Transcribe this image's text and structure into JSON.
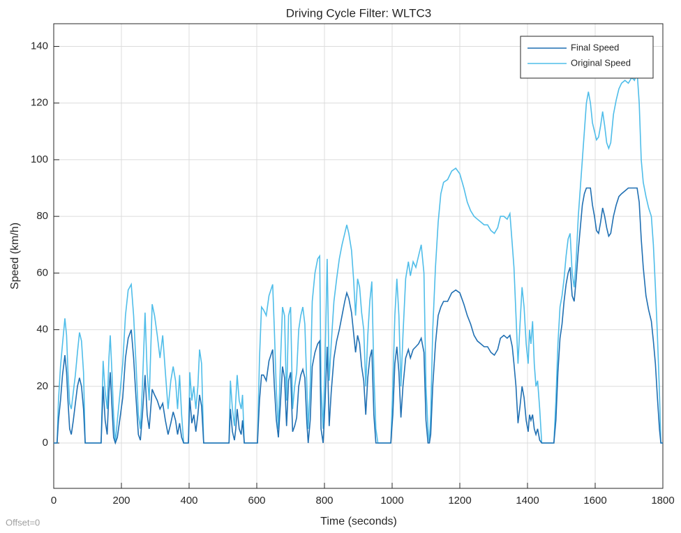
{
  "chart_data": {
    "type": "line",
    "title": "Driving Cycle Filter: WLTC3",
    "x_label": "Time (seconds)",
    "y_label": "Speed (km/h)",
    "annotation": "Offset=0",
    "xlim": [
      0,
      1800
    ],
    "xticks": [
      0,
      200,
      400,
      600,
      800,
      1000,
      1200,
      1400,
      1600,
      1800
    ],
    "ylim": [
      -16,
      148
    ],
    "yticks": [
      0,
      20,
      40,
      60,
      80,
      100,
      120,
      140
    ],
    "grid": true,
    "legend": "upper right",
    "x": [
      0,
      10,
      14,
      20,
      26,
      33,
      38,
      42,
      47,
      52,
      58,
      64,
      70,
      76,
      82,
      88,
      93,
      140,
      146,
      152,
      158,
      163,
      167,
      172,
      177,
      182,
      188,
      196,
      204,
      212,
      220,
      229,
      236,
      243,
      250,
      256,
      262,
      270,
      276,
      282,
      291,
      298,
      306,
      314,
      322,
      330,
      338,
      346,
      353,
      360,
      366,
      372,
      378,
      384,
      398,
      402,
      408,
      414,
      420,
      426,
      431,
      437,
      443,
      518,
      522,
      528,
      534,
      538,
      542,
      548,
      554,
      558,
      563,
      602,
      608,
      614,
      620,
      628,
      636,
      647,
      652,
      658,
      664,
      670,
      676,
      682,
      688,
      694,
      700,
      706,
      712,
      718,
      724,
      730,
      736,
      742,
      748,
      752,
      758,
      764,
      772,
      780,
      786,
      790,
      796,
      802,
      808,
      814,
      820,
      828,
      836,
      844,
      852,
      860,
      866,
      872,
      880,
      886,
      892,
      898,
      904,
      910,
      916,
      922,
      928,
      934,
      940,
      946,
      952,
      958,
      996,
      1002,
      1008,
      1014,
      1020,
      1026,
      1032,
      1040,
      1048,
      1054,
      1062,
      1070,
      1078,
      1086,
      1094,
      1100,
      1106,
      1110,
      1114,
      1120,
      1128,
      1136,
      1144,
      1152,
      1164,
      1176,
      1188,
      1200,
      1212,
      1222,
      1232,
      1242,
      1252,
      1262,
      1272,
      1282,
      1292,
      1302,
      1312,
      1320,
      1330,
      1340,
      1348,
      1355,
      1360,
      1366,
      1372,
      1378,
      1384,
      1390,
      1396,
      1402,
      1406,
      1410,
      1415,
      1420,
      1425,
      1430,
      1436,
      1442,
      1478,
      1484,
      1490,
      1496,
      1502,
      1508,
      1514,
      1520,
      1526,
      1532,
      1538,
      1544,
      1550,
      1556,
      1562,
      1568,
      1574,
      1580,
      1586,
      1592,
      1598,
      1604,
      1610,
      1616,
      1622,
      1628,
      1634,
      1640,
      1646,
      1654,
      1662,
      1670,
      1678,
      1688,
      1698,
      1708,
      1716,
      1724,
      1730,
      1736,
      1742,
      1750,
      1758,
      1766,
      1772,
      1778,
      1784,
      1790,
      1794,
      1800
    ],
    "series": [
      {
        "name": "Final Speed",
        "color": "#1f6fb2",
        "values": [
          0,
          0,
          8,
          15,
          24,
          31,
          25,
          15,
          5,
          3,
          8,
          14,
          20,
          23,
          20,
          12,
          0,
          0,
          20,
          8,
          3,
          18,
          25,
          13,
          2,
          0,
          2,
          9,
          16,
          30,
          37,
          40,
          30,
          16,
          3,
          1,
          10,
          24,
          10,
          5,
          19,
          17,
          15,
          12,
          14,
          8,
          3,
          7,
          11,
          8,
          3,
          7,
          2,
          0,
          0,
          16,
          7,
          10,
          4,
          10,
          17,
          13,
          0,
          0,
          12,
          4,
          1,
          5,
          12,
          5,
          3,
          8,
          0,
          0,
          15,
          24,
          24,
          22,
          29,
          33,
          20,
          8,
          2,
          14,
          27,
          23,
          6,
          22,
          25,
          4,
          6,
          9,
          20,
          24,
          26,
          23,
          7,
          0,
          8,
          27,
          32,
          35,
          36,
          5,
          0,
          15,
          34,
          6,
          18,
          30,
          36,
          40,
          45,
          50,
          53,
          51,
          46,
          39,
          32,
          38,
          35,
          27,
          22,
          10,
          23,
          30,
          33,
          10,
          0,
          0,
          0,
          10,
          28,
          34,
          25,
          9,
          20,
          30,
          33,
          30,
          33,
          34,
          35,
          37,
          32,
          8,
          0,
          0,
          3,
          20,
          35,
          45,
          48,
          50,
          50,
          53,
          54,
          53,
          49,
          45,
          42,
          38,
          36,
          35,
          34,
          34,
          32,
          31,
          33,
          37,
          38,
          37,
          38,
          34,
          28,
          20,
          7,
          13,
          20,
          16,
          8,
          4,
          10,
          8,
          10,
          5,
          3,
          5,
          1,
          0,
          0,
          8,
          25,
          37,
          42,
          50,
          56,
          60,
          62,
          52,
          50,
          58,
          68,
          76,
          84,
          88,
          90,
          90,
          90,
          84,
          80,
          75,
          74,
          78,
          83,
          80,
          76,
          73,
          74,
          80,
          84,
          87,
          88,
          89,
          90,
          90,
          90,
          90,
          85,
          72,
          62,
          52,
          47,
          43,
          36,
          28,
          16,
          5,
          0,
          0
        ]
      },
      {
        "name": "Original Speed",
        "color": "#4fbde9",
        "values": [
          0,
          0,
          15,
          27,
          35,
          44,
          38,
          25,
          14,
          12,
          18,
          24,
          32,
          39,
          36,
          25,
          0,
          0,
          29,
          18,
          12,
          30,
          38,
          25,
          10,
          0,
          8,
          18,
          28,
          45,
          54,
          56,
          45,
          28,
          10,
          5,
          20,
          46,
          25,
          15,
          49,
          45,
          38,
          30,
          38,
          25,
          12,
          22,
          27,
          22,
          12,
          24,
          10,
          0,
          0,
          25,
          15,
          20,
          12,
          20,
          33,
          28,
          0,
          0,
          22,
          12,
          6,
          15,
          24,
          15,
          12,
          17,
          0,
          0,
          30,
          48,
          47,
          45,
          52,
          56,
          40,
          18,
          5,
          28,
          48,
          45,
          15,
          45,
          48,
          12,
          20,
          25,
          40,
          45,
          48,
          42,
          20,
          5,
          20,
          50,
          60,
          65,
          66,
          20,
          5,
          30,
          65,
          22,
          35,
          50,
          58,
          65,
          70,
          74,
          77,
          74,
          68,
          58,
          45,
          58,
          55,
          46,
          40,
          20,
          38,
          50,
          57,
          25,
          5,
          0,
          0,
          20,
          45,
          58,
          45,
          20,
          38,
          58,
          64,
          59,
          64,
          62,
          66,
          70,
          60,
          20,
          5,
          0,
          10,
          40,
          62,
          78,
          88,
          92,
          93,
          96,
          97,
          95,
          90,
          85,
          82,
          80,
          79,
          78,
          77,
          77,
          75,
          74,
          76,
          80,
          80,
          79,
          81,
          70,
          62,
          45,
          28,
          42,
          55,
          48,
          35,
          28,
          40,
          35,
          43,
          28,
          20,
          22,
          12,
          0,
          0,
          15,
          35,
          48,
          52,
          58,
          66,
          72,
          74,
          60,
          55,
          65,
          80,
          90,
          100,
          110,
          120,
          124,
          120,
          113,
          110,
          107,
          108,
          112,
          117,
          112,
          106,
          104,
          106,
          116,
          121,
          125,
          127,
          128,
          127,
          129,
          128,
          131,
          120,
          100,
          92,
          87,
          83,
          80,
          70,
          55,
          38,
          18,
          0,
          0
        ]
      }
    ]
  }
}
